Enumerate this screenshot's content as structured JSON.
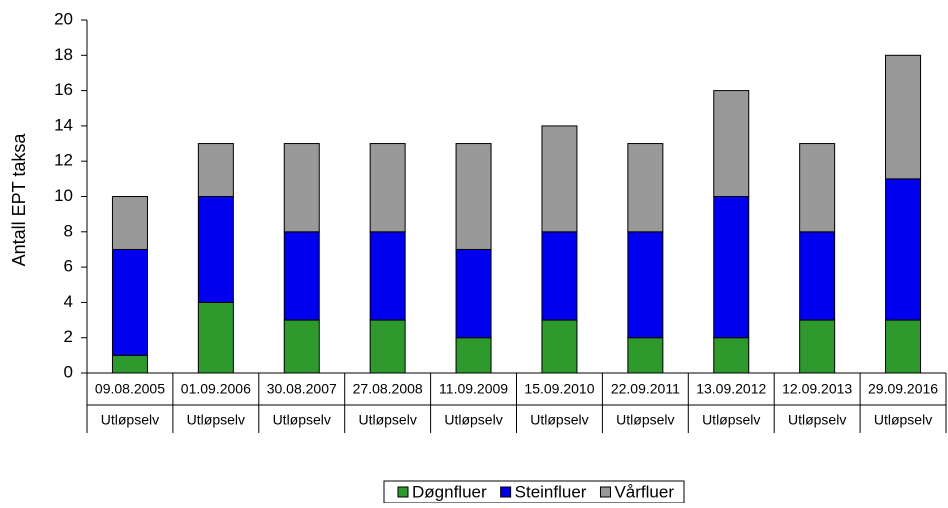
{
  "chart_data": {
    "type": "stacked_bar",
    "y_label": "Antall EPT taksa",
    "categories": [
      "09.08.2005",
      "01.09.2006",
      "30.08.2007",
      "27.08.2008",
      "11.09.2009",
      "15.09.2010",
      "22.09.2011",
      "13.09.2012",
      "12.09.2013",
      "29.09.2016"
    ],
    "subcategories": [
      "Utløpselv",
      "Utløpselv",
      "Utløpselv",
      "Utløpselv",
      "Utløpselv",
      "Utløpselv",
      "Utløpselv",
      "Utløpselv",
      "Utløpselv",
      "Utløpselv"
    ],
    "series": [
      {
        "name": "Døgnfluer",
        "color": "#2e9a2e",
        "values": [
          1,
          4,
          3,
          3,
          2,
          3,
          2,
          2,
          3,
          3
        ]
      },
      {
        "name": "Steinfluer",
        "color": "#0000ee",
        "values": [
          6,
          6,
          5,
          5,
          5,
          5,
          6,
          8,
          5,
          8
        ]
      },
      {
        "name": "Vårfluer",
        "color": "#999999",
        "values": [
          3,
          3,
          5,
          5,
          6,
          6,
          5,
          6,
          5,
          7
        ]
      }
    ],
    "ylim": [
      0,
      20
    ],
    "yticks": [
      0,
      2,
      4,
      6,
      8,
      10,
      12,
      14,
      16,
      18,
      20
    ],
    "legend": "bottom"
  }
}
